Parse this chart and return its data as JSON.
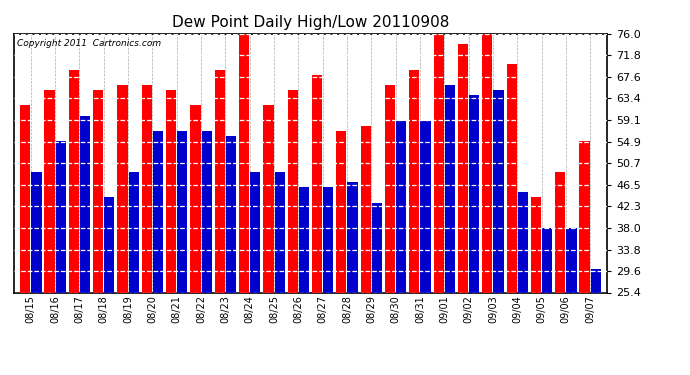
{
  "title": "Dew Point Daily High/Low 20110908",
  "copyright": "Copyright 2011  Cartronics.com",
  "dates": [
    "08/15",
    "08/16",
    "08/17",
    "08/18",
    "08/19",
    "08/20",
    "08/21",
    "08/22",
    "08/23",
    "08/24",
    "08/25",
    "08/26",
    "08/27",
    "08/28",
    "08/29",
    "08/30",
    "08/31",
    "09/01",
    "09/02",
    "09/03",
    "09/04",
    "09/05",
    "09/06",
    "09/07"
  ],
  "highs": [
    62,
    65,
    69,
    65,
    66,
    66,
    65,
    62,
    69,
    76,
    62,
    65,
    68,
    57,
    58,
    66,
    69,
    76,
    74,
    76,
    70,
    44,
    49,
    55
  ],
  "lows": [
    49,
    55,
    60,
    44,
    49,
    57,
    57,
    57,
    56,
    49,
    49,
    46,
    46,
    47,
    43,
    59,
    59,
    66,
    64,
    65,
    45,
    38,
    38,
    30
  ],
  "high_color": "#ff0000",
  "low_color": "#0000cc",
  "bg_color": "#ffffff",
  "ymin": 25.4,
  "ymax": 76.0,
  "yticks": [
    25.4,
    29.6,
    33.8,
    38.0,
    42.3,
    46.5,
    50.7,
    54.9,
    59.1,
    63.4,
    67.6,
    71.8,
    76.0
  ]
}
